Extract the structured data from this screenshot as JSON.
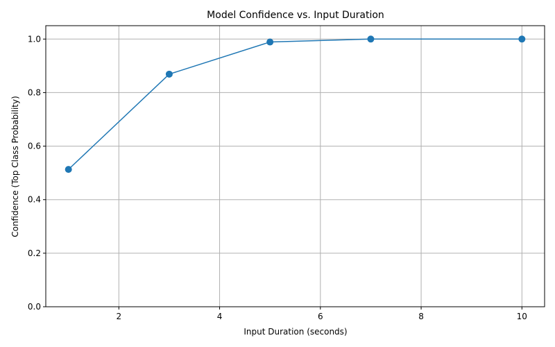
{
  "chart_data": {
    "type": "line",
    "title": "Model Confidence vs. Input Duration",
    "xlabel": "Input Duration (seconds)",
    "ylabel": "Confidence (Top Class Probability)",
    "xlim": [
      0.55,
      10.45
    ],
    "ylim": [
      0.0,
      1.05
    ],
    "xticks": [
      2,
      4,
      6,
      8,
      10
    ],
    "xtick_labels": [
      "2",
      "4",
      "6",
      "8",
      "10"
    ],
    "yticks": [
      0.0,
      0.2,
      0.4,
      0.6,
      0.8,
      1.0
    ],
    "ytick_labels": [
      "0.0",
      "0.2",
      "0.4",
      "0.6",
      "0.8",
      "1.0"
    ],
    "grid": true,
    "marker": "circle",
    "series": [
      {
        "x": [
          1,
          3,
          5,
          7,
          10
        ],
        "y": [
          0.513,
          0.869,
          0.989,
          1.0,
          1.0
        ],
        "color": "#1f77b4"
      }
    ]
  }
}
